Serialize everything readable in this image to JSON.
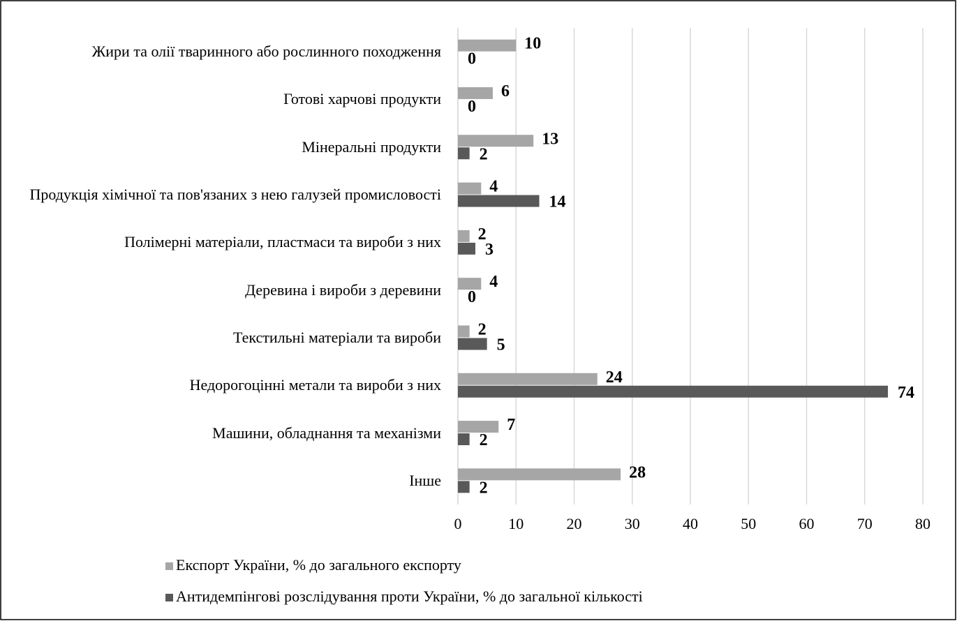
{
  "chart_data": {
    "type": "bar",
    "orientation": "horizontal",
    "categories": [
      "Жири та олії тваринного або рослинного походження",
      "Готові харчові продукти",
      "Мінеральні продукти",
      "Продукція хімічної та пов'язаних з нею галузей промисловості",
      "Полімерні матеріали, пластмаси та вироби з них",
      "Деревина і вироби з деревини",
      "Текстильні матеріали та вироби",
      "Недорогоцінні метали та вироби з них",
      "Машини, обладнання та механізми",
      "Інше"
    ],
    "series": [
      {
        "name": "Експорт України, % до загального експорту",
        "color": "#a6a6a6",
        "values": [
          10,
          6,
          13,
          4,
          2,
          4,
          2,
          24,
          7,
          28
        ]
      },
      {
        "name": "Антидемпінгові розслідування проти України, % до загальної кількості",
        "color": "#595959",
        "values": [
          0,
          0,
          2,
          14,
          3,
          0,
          5,
          74,
          2,
          2
        ]
      }
    ],
    "xlim": [
      0,
      80
    ],
    "xticks": [
      0,
      10,
      20,
      30,
      40,
      50,
      60,
      70,
      80
    ],
    "grid": true,
    "legend": "bottom"
  }
}
